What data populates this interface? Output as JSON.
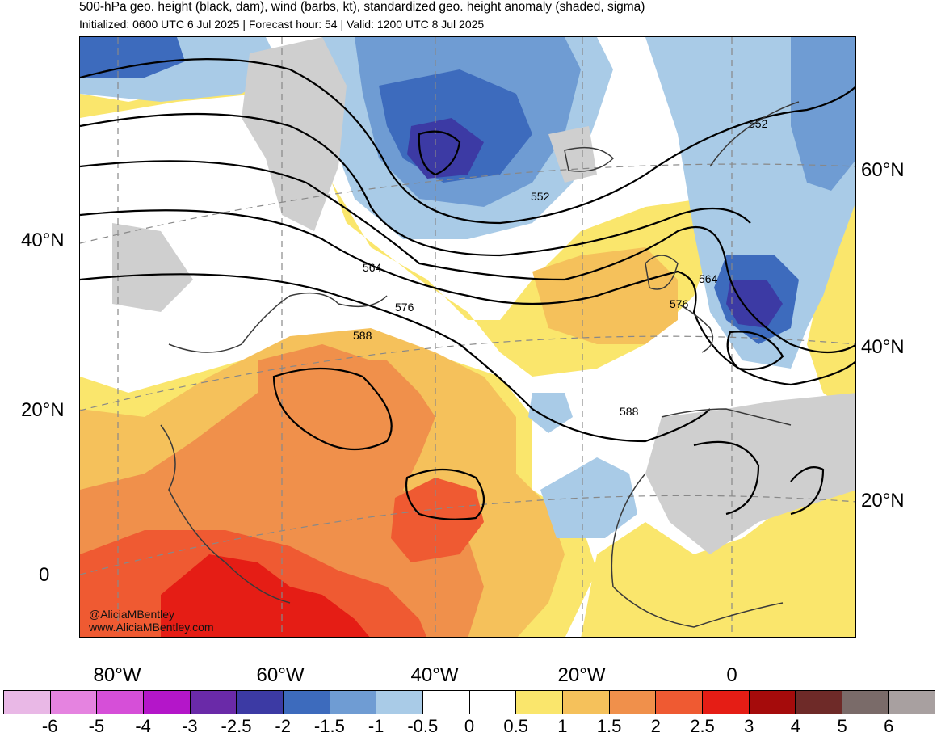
{
  "header": {
    "title": "500-hPa geo. height (black, dam), wind (barbs, kt), standardized geo. height anomaly (shaded, sigma)",
    "subtitle": "Initialized: 0600 UTC 6 Jul 2025 | Forecast hour: 54 | Valid: 1200 UTC 8 Jul 2025"
  },
  "map": {
    "lat_labels_left": [
      "40°N",
      "20°N",
      "0"
    ],
    "lat_labels_right": [
      "60°N",
      "40°N",
      "20°N"
    ],
    "lon_labels": [
      "80°W",
      "60°W",
      "40°W",
      "20°W",
      "0"
    ],
    "contour_labels": [
      "552",
      "552",
      "564",
      "564",
      "576",
      "576",
      "588",
      "588"
    ],
    "credit_line1": "@AliciaMBentley",
    "credit_line2": "www.AliciaMBentley.com"
  },
  "colorbar": {
    "labels": [
      "-6",
      "-5",
      "-4",
      "-3",
      "-2.5",
      "-2",
      "-1.5",
      "-1",
      "-0.5",
      "0",
      "0.5",
      "1",
      "1.5",
      "2",
      "2.5",
      "3",
      "4",
      "5",
      "6"
    ],
    "colors": [
      "#e9b8e6",
      "#e583e0",
      "#d64fd8",
      "#b416c9",
      "#6a2aa8",
      "#3c3aa4",
      "#3d6bbd",
      "#6f9cd3",
      "#a9cbe7",
      "#ffffff",
      "#ffffff",
      "#fae66c",
      "#f5c15b",
      "#f0904b",
      "#ef5a32",
      "#e51d15",
      "#a50b0b",
      "#6e2a28",
      "#7a6b69",
      "#a8a0a0"
    ]
  }
}
